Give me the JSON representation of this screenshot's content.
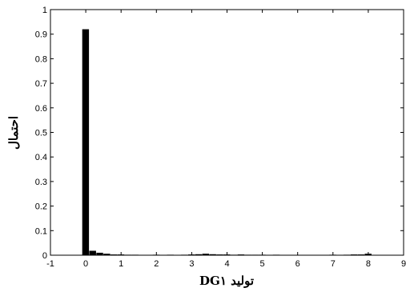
{
  "chart_data": {
    "type": "bar",
    "xlabel": "تولید DG۱",
    "ylabel": "احتمال",
    "xlim": [
      -1,
      9
    ],
    "ylim": [
      0,
      1
    ],
    "xticks": [
      "-1",
      "0",
      "1",
      "2",
      "3",
      "4",
      "5",
      "6",
      "7",
      "8",
      "9"
    ],
    "yticks": [
      "0",
      "0.1",
      "0.2",
      "0.3",
      "0.4",
      "0.5",
      "0.6",
      "0.7",
      "0.8",
      "0.9",
      "1"
    ],
    "bar_width": 0.2,
    "x": [
      0,
      0.2,
      0.4,
      0.6,
      0.8,
      1.0,
      1.2,
      1.4,
      1.6,
      1.8,
      2.0,
      2.2,
      2.4,
      2.6,
      2.8,
      3.0,
      3.2,
      3.4,
      3.6,
      3.8,
      4.0,
      4.2,
      4.4,
      4.6,
      4.8,
      5.0,
      5.2,
      5.4,
      5.6,
      5.8,
      6.0,
      6.2,
      6.4,
      6.6,
      6.8,
      7.0,
      7.2,
      7.4,
      7.6,
      7.8,
      8.0
    ],
    "values": [
      0.92,
      0.018,
      0.01,
      0.006,
      0.003,
      0.003,
      0.002,
      0.002,
      0.001,
      0.001,
      0.002,
      0.001,
      0.002,
      0.001,
      0.002,
      0.003,
      0.004,
      0.006,
      0.004,
      0.003,
      0.003,
      0.002,
      0.003,
      0.002,
      0.002,
      0.002,
      0.001,
      0.002,
      0.001,
      0.001,
      0.001,
      0.001,
      0.001,
      0.001,
      0.001,
      0.002,
      0.001,
      0.002,
      0.003,
      0.003,
      0.006
    ],
    "bar_color": "#000000",
    "grid": false,
    "legend": "none"
  }
}
